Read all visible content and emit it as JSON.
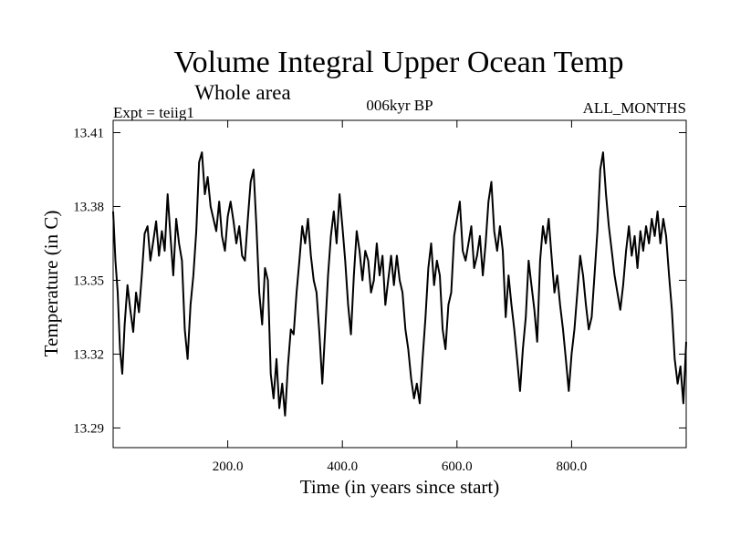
{
  "chart_data": {
    "type": "line",
    "title": "Volume Integral Upper Ocean Temp",
    "subtitle": "Whole area",
    "experiment": "Expt = teiig1",
    "period": "006kyr BP",
    "months": "ALL_MONTHS",
    "xlabel": "Time (in years since start)",
    "ylabel": "Temperature (in C)",
    "xlim": [
      0,
      1000
    ],
    "ylim": [
      13.282,
      13.415
    ],
    "xticks": [
      {
        "value": 200,
        "label": "200.0"
      },
      {
        "value": 400,
        "label": "400.0"
      },
      {
        "value": 600,
        "label": "600.0"
      },
      {
        "value": 800,
        "label": "800.0"
      }
    ],
    "yticks": [
      {
        "value": 13.29,
        "label": "13.29"
      },
      {
        "value": 13.32,
        "label": "13.32"
      },
      {
        "value": 13.35,
        "label": "13.35"
      },
      {
        "value": 13.38,
        "label": "13.38"
      },
      {
        "value": 13.41,
        "label": "13.41"
      }
    ],
    "grid": false,
    "color": "#000000",
    "series": [
      {
        "x": [
          0,
          4,
          8,
          12,
          16,
          20,
          25,
          30,
          35,
          40,
          45,
          50,
          55,
          60,
          65,
          70,
          75,
          80,
          85,
          90,
          95,
          100,
          105,
          110,
          115,
          120,
          125,
          130,
          135,
          140,
          145,
          150,
          155,
          160,
          165,
          170,
          175,
          180,
          185,
          190,
          195,
          200,
          205,
          210,
          215,
          220,
          225,
          230,
          235,
          240,
          245,
          250,
          255,
          260,
          265,
          270,
          275,
          280,
          285,
          290,
          295,
          300,
          305,
          310,
          315,
          320,
          325,
          330,
          335,
          340,
          345,
          350,
          355,
          360,
          365,
          370,
          375,
          380,
          385,
          390,
          395,
          400,
          405,
          410,
          415,
          420,
          425,
          430,
          435,
          440,
          445,
          450,
          455,
          460,
          465,
          470,
          475,
          480,
          485,
          490,
          495,
          500,
          505,
          510,
          515,
          520,
          525,
          530,
          535,
          540,
          545,
          550,
          555,
          560,
          565,
          570,
          575,
          580,
          585,
          590,
          595,
          600,
          605,
          610,
          615,
          620,
          625,
          630,
          635,
          640,
          645,
          650,
          655,
          660,
          665,
          670,
          675,
          680,
          685,
          690,
          695,
          700,
          705,
          710,
          715,
          720,
          725,
          730,
          735,
          740,
          745,
          750,
          755,
          760,
          765,
          770,
          775,
          780,
          785,
          790,
          795,
          800,
          805,
          810,
          815,
          820,
          825,
          830,
          835,
          840,
          845,
          850,
          855,
          860,
          865,
          870,
          875,
          880,
          885,
          890,
          895,
          900,
          905,
          910,
          915,
          920,
          925,
          930,
          935,
          940,
          945,
          950,
          955,
          960,
          965,
          970,
          975,
          980,
          985,
          990,
          995,
          1000
        ],
        "y": [
          13.378,
          13.358,
          13.345,
          13.322,
          13.312,
          13.332,
          13.348,
          13.338,
          13.329,
          13.345,
          13.337,
          13.352,
          13.369,
          13.372,
          13.358,
          13.366,
          13.374,
          13.36,
          13.37,
          13.362,
          13.385,
          13.368,
          13.352,
          13.375,
          13.365,
          13.358,
          13.33,
          13.318,
          13.34,
          13.352,
          13.37,
          13.398,
          13.402,
          13.385,
          13.392,
          13.38,
          13.375,
          13.37,
          13.382,
          13.368,
          13.362,
          13.376,
          13.382,
          13.374,
          13.365,
          13.372,
          13.36,
          13.358,
          13.375,
          13.39,
          13.395,
          13.372,
          13.345,
          13.332,
          13.355,
          13.35,
          13.312,
          13.302,
          13.318,
          13.298,
          13.308,
          13.295,
          13.315,
          13.33,
          13.328,
          13.345,
          13.358,
          13.372,
          13.365,
          13.375,
          13.36,
          13.35,
          13.345,
          13.328,
          13.308,
          13.33,
          13.352,
          13.368,
          13.378,
          13.365,
          13.385,
          13.372,
          13.358,
          13.34,
          13.328,
          13.352,
          13.37,
          13.362,
          13.35,
          13.362,
          13.358,
          13.345,
          13.35,
          13.365,
          13.352,
          13.36,
          13.34,
          13.35,
          13.36,
          13.348,
          13.36,
          13.35,
          13.345,
          13.33,
          13.322,
          13.31,
          13.302,
          13.308,
          13.3,
          13.318,
          13.335,
          13.355,
          13.365,
          13.348,
          13.358,
          13.352,
          13.33,
          13.322,
          13.34,
          13.345,
          13.368,
          13.375,
          13.382,
          13.362,
          13.358,
          13.365,
          13.372,
          13.355,
          13.36,
          13.368,
          13.352,
          13.365,
          13.382,
          13.39,
          13.37,
          13.362,
          13.372,
          13.362,
          13.335,
          13.352,
          13.34,
          13.33,
          13.318,
          13.305,
          13.322,
          13.335,
          13.358,
          13.348,
          13.338,
          13.325,
          13.358,
          13.372,
          13.365,
          13.375,
          13.36,
          13.345,
          13.352,
          13.34,
          13.33,
          13.318,
          13.305,
          13.32,
          13.33,
          13.345,
          13.36,
          13.352,
          13.34,
          13.33,
          13.335,
          13.352,
          13.37,
          13.395,
          13.402,
          13.385,
          13.372,
          13.362,
          13.352,
          13.345,
          13.338,
          13.348,
          13.362,
          13.372,
          13.36,
          13.368,
          13.355,
          13.37,
          13.362,
          13.372,
          13.365,
          13.375,
          13.368,
          13.378,
          13.365,
          13.375,
          13.368,
          13.352,
          13.338,
          13.318,
          13.308,
          13.315,
          13.3,
          13.325
        ]
      }
    ]
  }
}
